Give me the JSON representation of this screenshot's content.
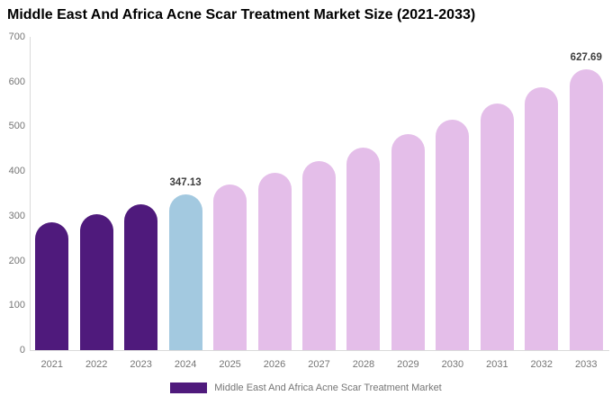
{
  "title": "Middle East And Africa Acne Scar Treatment Market Size (2021-2033)",
  "legend": {
    "label": "Middle East And Africa Acne Scar Treatment Market",
    "swatch_color": "#4f1a7c"
  },
  "colors": {
    "historical_bar": "#4f1a7c",
    "base_year_bar": "#a3c9e0",
    "forecast_bar": "#e4bee9",
    "axis_line": "#d9d9d9",
    "tick_text": "#757575",
    "annotation_text": "#3d3d3d",
    "title_text": "#000000",
    "background": "#ffffff"
  },
  "chart_data": {
    "type": "bar",
    "title": "Middle East And Africa Acne Scar Treatment Market Size (2021-2033)",
    "xlabel": "",
    "ylabel": "",
    "categories": [
      "2021",
      "2022",
      "2023",
      "2024",
      "2025",
      "2026",
      "2027",
      "2028",
      "2029",
      "2030",
      "2031",
      "2032",
      "2033"
    ],
    "values": [
      284.9,
      304.3,
      325.0,
      347.13,
      370.7,
      395.9,
      422.9,
      451.6,
      482.3,
      515.1,
      550.2,
      587.6,
      627.69
    ],
    "bar_colors": [
      "#4f1a7c",
      "#4f1a7c",
      "#4f1a7c",
      "#a3c9e0",
      "#e4bee9",
      "#e4bee9",
      "#e4bee9",
      "#e4bee9",
      "#e4bee9",
      "#e4bee9",
      "#e4bee9",
      "#e4bee9",
      "#e4bee9"
    ],
    "annotations": [
      {
        "category": "2024",
        "text": "347.13"
      },
      {
        "category": "2033",
        "text": "627.69"
      }
    ],
    "ylim": [
      0,
      700
    ],
    "yticks": [
      0,
      100,
      200,
      300,
      400,
      500,
      600,
      700
    ],
    "grid": false,
    "legend_position": "bottom-center",
    "legend_entries": [
      "Middle East And Africa Acne Scar Treatment Market"
    ]
  }
}
